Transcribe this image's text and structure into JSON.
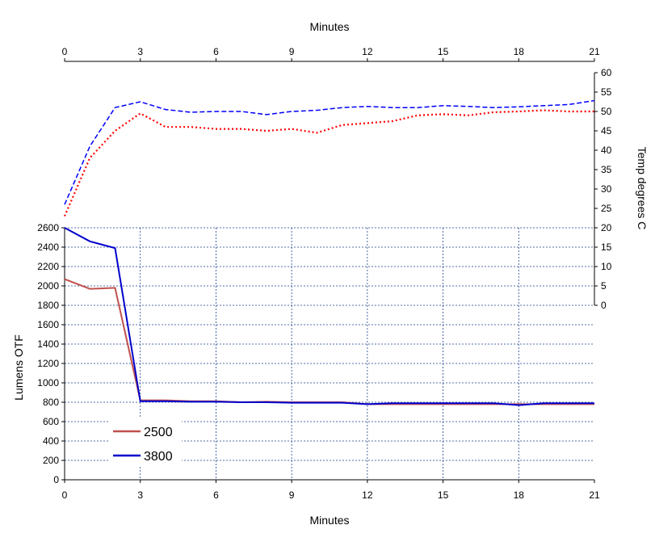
{
  "chart_data": {
    "type": "line",
    "x_axis": {
      "label_bottom": "Minutes",
      "label_top": "Minutes",
      "range": [
        0,
        21
      ],
      "ticks": [
        0,
        3,
        6,
        9,
        12,
        15,
        18,
        21
      ]
    },
    "left_axis": {
      "label": "Lumens OTF",
      "range": [
        0,
        2600
      ],
      "ticks": [
        0,
        200,
        400,
        600,
        800,
        1000,
        1200,
        1400,
        1600,
        1800,
        2000,
        2200,
        2400,
        2600
      ]
    },
    "right_axis": {
      "label": "Temp degrees C",
      "range": [
        0,
        60
      ],
      "ticks": [
        0,
        5,
        10,
        15,
        20,
        25,
        30,
        35,
        40,
        45,
        50,
        55,
        60
      ]
    },
    "grid": true,
    "legend_position": "bottom-left",
    "x": [
      0,
      1,
      2,
      3,
      4,
      5,
      6,
      7,
      8,
      9,
      10,
      11,
      12,
      13,
      14,
      15,
      16,
      17,
      18,
      19,
      20,
      21
    ],
    "series": [
      {
        "name": "2500",
        "axis": "left",
        "color": "#c0504d",
        "style": "solid",
        "values": [
          2070,
          1970,
          1980,
          820,
          820,
          810,
          810,
          800,
          805,
          800,
          800,
          800,
          780,
          780,
          780,
          780,
          780,
          780,
          780,
          780,
          780,
          780
        ]
      },
      {
        "name": "3800",
        "axis": "left",
        "color": "#0000cc",
        "style": "solid",
        "values": [
          2600,
          2460,
          2390,
          810,
          810,
          805,
          805,
          800,
          800,
          795,
          795,
          795,
          780,
          790,
          790,
          790,
          790,
          790,
          770,
          790,
          790,
          790
        ]
      },
      {
        "axis": "right",
        "color": "#ff0000",
        "style": "dotted",
        "values": [
          23,
          38,
          45,
          49.5,
          46,
          46,
          45.5,
          45.5,
          45,
          45.5,
          44.5,
          46.5,
          47,
          47.5,
          49,
          49.3,
          49,
          49.8,
          50,
          50.3,
          50,
          50
        ]
      },
      {
        "axis": "right",
        "color": "#0000ff",
        "style": "dashed",
        "values": [
          26,
          41,
          51,
          52.5,
          50.5,
          49.8,
          50,
          50,
          49.2,
          50,
          50.3,
          51,
          51.3,
          51,
          51,
          51.5,
          51.3,
          51,
          51.2,
          51.5,
          51.8,
          52.8
        ]
      }
    ]
  }
}
